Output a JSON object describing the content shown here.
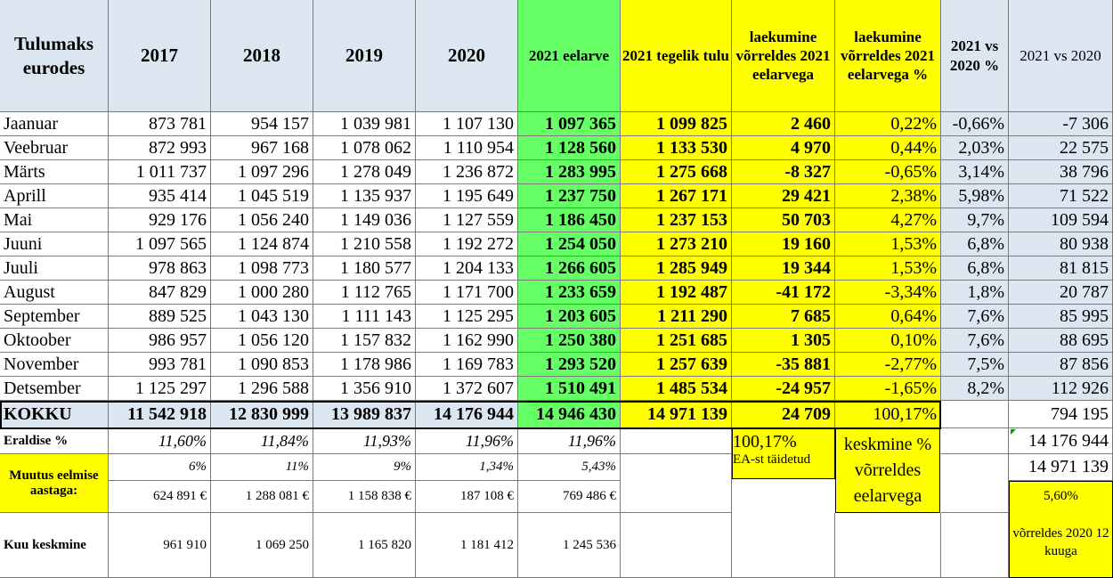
{
  "header": {
    "label": "Tulumaks eurodes",
    "years": [
      "2017",
      "2018",
      "2019",
      "2020"
    ],
    "budget": "2021 eelarve",
    "actual": "2021 tegelik tulu",
    "diff": "laekumine võrreldes 2021 eelarvega",
    "diff_pct": "laekumine võrreldes 2021 eelarvega %",
    "vs_pct": "2021 vs 2020 %",
    "vs_abs": "2021 vs 2020"
  },
  "months": [
    {
      "name": "Jaanuar",
      "y2017": "873 781",
      "y2018": "954 157",
      "y2019": "1 039 981",
      "y2020": "1 107 130",
      "budget": "1 097 365",
      "actual": "1 099 825",
      "diff": "2 460",
      "diff_pct": "0,22%",
      "vs_pct": "-0,66%",
      "vs_abs": "-7 306"
    },
    {
      "name": "Veebruar",
      "y2017": "872 993",
      "y2018": "967 168",
      "y2019": "1 078 062",
      "y2020": "1 110 954",
      "budget": "1 128 560",
      "actual": "1 133 530",
      "diff": "4 970",
      "diff_pct": "0,44%",
      "vs_pct": "2,03%",
      "vs_abs": "22 575"
    },
    {
      "name": "Märts",
      "y2017": "1 011 737",
      "y2018": "1 097 296",
      "y2019": "1 278 049",
      "y2020": "1 236 872",
      "budget": "1 283 995",
      "actual": "1 275 668",
      "diff": "-8 327",
      "diff_pct": "-0,65%",
      "vs_pct": "3,14%",
      "vs_abs": "38 796"
    },
    {
      "name": "Aprill",
      "y2017": "935 414",
      "y2018": "1 045 519",
      "y2019": "1 135 937",
      "y2020": "1 195 649",
      "budget": "1 237 750",
      "actual": "1 267 171",
      "diff": "29 421",
      "diff_pct": "2,38%",
      "vs_pct": "5,98%",
      "vs_abs": "71 522"
    },
    {
      "name": "Mai",
      "y2017": "929 176",
      "y2018": "1 056 240",
      "y2019": "1 149 036",
      "y2020": "1 127 559",
      "budget": "1 186 450",
      "actual": "1 237 153",
      "diff": "50 703",
      "diff_pct": "4,27%",
      "vs_pct": "9,7%",
      "vs_abs": "109 594"
    },
    {
      "name": "Juuni",
      "y2017": "1 097 565",
      "y2018": "1 124 874",
      "y2019": "1 210 558",
      "y2020": "1 192 272",
      "budget": "1 254 050",
      "actual": "1 273 210",
      "diff": "19 160",
      "diff_pct": "1,53%",
      "vs_pct": "6,8%",
      "vs_abs": "80 938"
    },
    {
      "name": "Juuli",
      "y2017": "978 863",
      "y2018": "1 098 773",
      "y2019": "1 180 577",
      "y2020": "1 204 133",
      "budget": "1 266 605",
      "actual": "1 285 949",
      "diff": "19 344",
      "diff_pct": "1,53%",
      "vs_pct": "6,8%",
      "vs_abs": "81 815"
    },
    {
      "name": "August",
      "y2017": "847 829",
      "y2018": "1 000 280",
      "y2019": "1 112 765",
      "y2020": "1 171 700",
      "budget": "1 233 659",
      "actual": "1 192 487",
      "diff": "-41 172",
      "diff_pct": "-3,34%",
      "vs_pct": "1,8%",
      "vs_abs": "20 787"
    },
    {
      "name": "September",
      "y2017": "889 525",
      "y2018": "1 043 130",
      "y2019": "1 111 143",
      "y2020": "1 125 295",
      "budget": "1 203 605",
      "actual": "1 211 290",
      "diff": "7 685",
      "diff_pct": "0,64%",
      "vs_pct": "7,6%",
      "vs_abs": "85 995"
    },
    {
      "name": "Oktoober",
      "y2017": "986 957",
      "y2018": "1 056 120",
      "y2019": "1 157 832",
      "y2020": "1 162 990",
      "budget": "1 250 380",
      "actual": "1 251 685",
      "diff": "1 305",
      "diff_pct": "0,10%",
      "vs_pct": "7,6%",
      "vs_abs": "88 695"
    },
    {
      "name": "November",
      "y2017": "993 781",
      "y2018": "1 090 853",
      "y2019": "1 178 986",
      "y2020": "1 169 783",
      "budget": "1 293 520",
      "actual": "1 257 639",
      "diff": "-35 881",
      "diff_pct": "-2,77%",
      "vs_pct": "7,5%",
      "vs_abs": "87 856"
    },
    {
      "name": "Detsember",
      "y2017": "1 125 297",
      "y2018": "1 296 588",
      "y2019": "1 356 910",
      "y2020": "1 372 607",
      "budget": "1 510 491",
      "actual": "1 485 534",
      "diff": "-24 957",
      "diff_pct": "-1,65%",
      "vs_pct": "8,2%",
      "vs_abs": "112 926"
    }
  ],
  "total": {
    "name": "KOKKU",
    "y2017": "11 542 918",
    "y2018": "12 830 999",
    "y2019": "13 989 837",
    "y2020": "14 176 944",
    "budget": "14 946 430",
    "actual": "14 971 139",
    "diff": "24 709",
    "diff_pct": "100,17%",
    "vs_abs": "794 195"
  },
  "eraldise": {
    "label": "Eraldise %",
    "y2017": "11,60%",
    "y2018": "11,84%",
    "y2019": "11,93%",
    "y2020": "11,96%",
    "budget": "11,96%"
  },
  "muutus": {
    "label": "Muutus eelmise aastaga:",
    "pct": {
      "y2017": "6%",
      "y2018": "11%",
      "y2019": "9%",
      "y2020": "1,34%",
      "budget": "5,43%"
    },
    "eur": {
      "y2017": "624 891 €",
      "y2018": "1 288 081 €",
      "y2019": "1 158 838 €",
      "y2020": "187 108 €",
      "budget": "769 486 €"
    }
  },
  "keskmine": {
    "label": "Kuu keskmine",
    "y2017": "961 910",
    "y2018": "1 069 250",
    "y2019": "1 165 820",
    "y2020": "1 181 412",
    "budget": "1 245 536"
  },
  "side_notes": {
    "ea_pct": "100,17%",
    "ea_label": "EA-st täidetud",
    "avg_label": "keskmine % võrreldes eelarvega",
    "v2020": "14 176 944",
    "v2021": "14 971 139",
    "growth_pct": "5,60%",
    "growth_label": "võrreldes 2020 12 kuuga"
  },
  "colors": {
    "header_bg": "#dce6f1",
    "budget_bg": "#66ff66",
    "highlight_bg": "#ffff00"
  }
}
